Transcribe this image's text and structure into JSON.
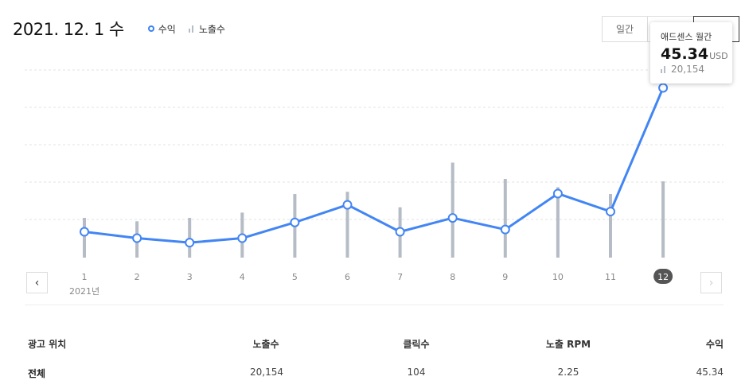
{
  "header": {
    "date": "2021. 12. 1 수"
  },
  "legend": {
    "revenue": "수익",
    "impressions": "노출수"
  },
  "period_buttons": [
    "일간",
    "",
    ""
  ],
  "tooltip": {
    "title": "애드센스 월간",
    "value": "45.34",
    "unit": "USD",
    "impressions": "20,154"
  },
  "year_label": "2021년",
  "colors": {
    "line": "#4285f4",
    "bar": "#b5bcc6",
    "selected_badge": "#555555"
  },
  "chart_data": {
    "type": "line",
    "x": [
      "1",
      "2",
      "3",
      "4",
      "5",
      "6",
      "7",
      "8",
      "9",
      "10",
      "11",
      "12"
    ],
    "selected_index": 11,
    "series": [
      {
        "name": "수익",
        "type": "line",
        "values": [
          6.9,
          5.2,
          4.0,
          5.2,
          9.4,
          14.1,
          6.9,
          10.6,
          7.5,
          17.1,
          12.3,
          45.34
        ]
      },
      {
        "name": "노출수",
        "type": "bar",
        "values": [
          10500,
          9600,
          10500,
          11900,
          16800,
          17400,
          13300,
          25100,
          20800,
          18600,
          16800,
          20154
        ]
      }
    ],
    "grid": true
  },
  "table": {
    "headers": [
      "광고 위치",
      "노출수",
      "클릭수",
      "노출 RPM",
      "수익"
    ],
    "rows": [
      [
        "전체",
        "20,154",
        "104",
        "2.25",
        "45.34"
      ]
    ]
  }
}
